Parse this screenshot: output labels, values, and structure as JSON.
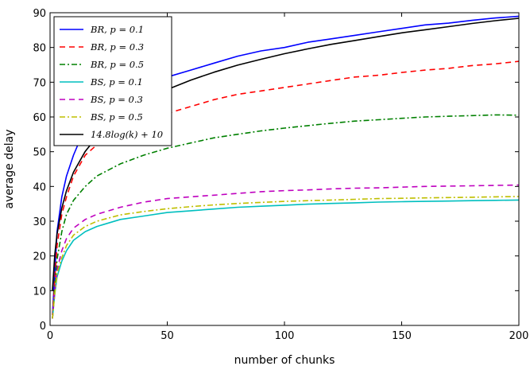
{
  "chart_data": {
    "type": "line",
    "xlabel": "number of chunks",
    "ylabel": "average delay",
    "xlim": [
      0,
      200
    ],
    "ylim": [
      0,
      90
    ],
    "xticks": [
      0,
      50,
      100,
      150,
      200
    ],
    "yticks": [
      0,
      10,
      20,
      30,
      40,
      50,
      60,
      70,
      80,
      90
    ],
    "grid": false,
    "legend_position": "top-left",
    "x": [
      1,
      2,
      3,
      5,
      7,
      10,
      15,
      20,
      30,
      40,
      50,
      60,
      70,
      80,
      90,
      100,
      110,
      120,
      130,
      140,
      150,
      160,
      170,
      180,
      190,
      200
    ],
    "series": [
      {
        "name": "BR, p = 0.1",
        "color": "#0000ff",
        "style": "solid",
        "values": [
          3,
          15,
          27,
          37,
          43,
          49,
          57,
          61,
          66,
          69,
          71.5,
          73.5,
          75.5,
          77.5,
          79,
          80,
          81.5,
          82.5,
          83.5,
          84.5,
          85.5,
          86.5,
          87,
          87.8,
          88.5,
          89
        ]
      },
      {
        "name": "BR, p = 0.3",
        "color": "#ff0000",
        "style": "dashed",
        "values": [
          3,
          13,
          23,
          32,
          37,
          43,
          49,
          52,
          56,
          59,
          61,
          63,
          65,
          66.5,
          67.5,
          68.5,
          69.5,
          70.5,
          71.5,
          72,
          72.8,
          73.5,
          74,
          74.8,
          75.3,
          76
        ]
      },
      {
        "name": "BR, p = 0.5",
        "color": "#008000",
        "style": "dashdot",
        "values": [
          2,
          11,
          19,
          27,
          32,
          36,
          40,
          43,
          46.5,
          49,
          51,
          52.5,
          54,
          55,
          56,
          56.8,
          57.5,
          58.2,
          58.8,
          59.2,
          59.6,
          60,
          60.2,
          60.4,
          60.6,
          60.5
        ]
      },
      {
        "name": "BS, p = 0.1",
        "color": "#00bfbf",
        "style": "solid",
        "values": [
          2,
          9,
          14,
          18.5,
          21.5,
          24.5,
          27,
          28.5,
          30.5,
          31.5,
          32.5,
          33,
          33.5,
          34,
          34.3,
          34.6,
          34.9,
          35.1,
          35.3,
          35.5,
          35.6,
          35.7,
          35.8,
          35.9,
          36,
          36.1
        ]
      },
      {
        "name": "BS, p = 0.3",
        "color": "#bf00bf",
        "style": "dashed",
        "values": [
          2,
          10,
          16,
          21.5,
          25,
          28,
          30.5,
          32,
          34,
          35.5,
          36.5,
          37,
          37.5,
          38,
          38.5,
          38.8,
          39,
          39.3,
          39.5,
          39.6,
          39.8,
          40,
          40.1,
          40.2,
          40.3,
          40.4
        ]
      },
      {
        "name": "BS, p = 0.5",
        "color": "#bfbf00",
        "style": "dashdot",
        "values": [
          2,
          9,
          15,
          19.5,
          23,
          26,
          28.5,
          30,
          31.8,
          32.8,
          33.6,
          34.2,
          34.7,
          35.1,
          35.4,
          35.7,
          35.9,
          36.1,
          36.3,
          36.5,
          36.6,
          36.7,
          36.8,
          36.9,
          37,
          37.1
        ]
      },
      {
        "name": "14.8log(k) + 10",
        "color": "#000000",
        "style": "solid",
        "formula": "14.8*ln(k)+10",
        "values": [
          10,
          20.3,
          26.3,
          33.8,
          38.8,
          44.1,
          50.1,
          54.3,
          60.3,
          64.6,
          67.9,
          70.6,
          72.9,
          74.9,
          76.6,
          78.2,
          79.6,
          80.9,
          82,
          83.1,
          84.2,
          85.1,
          86,
          86.9,
          87.7,
          88.4
        ]
      }
    ]
  }
}
